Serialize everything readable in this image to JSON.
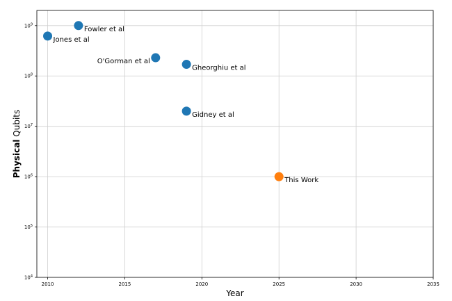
{
  "chart_data": {
    "type": "scatter",
    "title": "",
    "xlabel": "Year",
    "ylabel_bold": "Physical",
    "ylabel_rest": " Qubits",
    "xscale": "linear",
    "yscale": "log",
    "xlim": [
      2009.3,
      2035
    ],
    "ylim": [
      10000,
      2000000000
    ],
    "xticks": [
      2010,
      2015,
      2020,
      2025,
      2030,
      2035
    ],
    "xtick_labels": [
      "2010",
      "2015",
      "2020",
      "2025",
      "2030",
      "2035"
    ],
    "yticks": [
      10000,
      100000,
      1000000,
      10000000,
      100000000,
      1000000000
    ],
    "ytick_labels": [
      {
        "base": "10",
        "exp": "4"
      },
      {
        "base": "10",
        "exp": "5"
      },
      {
        "base": "10",
        "exp": "6"
      },
      {
        "base": "10",
        "exp": "7"
      },
      {
        "base": "10",
        "exp": "8"
      },
      {
        "base": "10",
        "exp": "9"
      }
    ],
    "grid": true,
    "legend": "none",
    "points": [
      {
        "label": "Jones et al",
        "x": 2010,
        "y": 620000000,
        "color": "#1f77b4",
        "label_side": "right"
      },
      {
        "label": "Fowler et al",
        "x": 2012,
        "y": 1000000000,
        "color": "#1f77b4",
        "label_side": "right"
      },
      {
        "label": "O'Gorman et al",
        "x": 2017,
        "y": 230000000,
        "color": "#1f77b4",
        "label_side": "left"
      },
      {
        "label": "Gheorghiu et al",
        "x": 2019,
        "y": 170000000,
        "color": "#1f77b4",
        "label_side": "right"
      },
      {
        "label": "Gidney et al",
        "x": 2019,
        "y": 20000000,
        "color": "#1f77b4",
        "label_side": "right"
      },
      {
        "label": "This Work",
        "x": 2025,
        "y": 1000000,
        "color": "#ff7f0e",
        "label_side": "right"
      }
    ]
  }
}
